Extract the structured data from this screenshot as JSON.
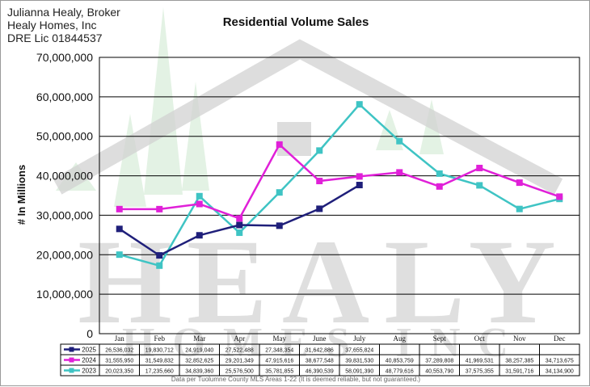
{
  "header": {
    "line1": "Julianna Healy, Broker",
    "line2": "Healy Homes, Inc",
    "line3": "DRE Lic 01844537"
  },
  "watermark": {
    "line1": "HEALY",
    "line2": "HOMES INC"
  },
  "footnote": "Data per Tuolumne County MLS Areas 1-22 (It is deemed reliable, but not guaranteed.)",
  "colors": {
    "s2025": "#1f1f7a",
    "s2024": "#e020d8",
    "s2023": "#3fc4c4",
    "grid": "#000000",
    "watermark_gray": "#d2d2d2",
    "watermark_green": "#d9eedb"
  },
  "chart_data": {
    "type": "line",
    "title": "Residential Volume Sales",
    "ylabel": "# In Millions",
    "xlabel": "",
    "ylim": [
      0,
      70000000
    ],
    "yticks": [
      "0",
      "10,000,000",
      "20,000,000",
      "30,000,000",
      "40,000,000",
      "50,000,000",
      "60,000,000",
      "70,000,000"
    ],
    "ytick_values": [
      0,
      10000000,
      20000000,
      30000000,
      40000000,
      50000000,
      60000000,
      70000000
    ],
    "grid": true,
    "legend": "data table below chart",
    "categories": [
      "Jan",
      "Feb",
      "Mar",
      "Apr",
      "May",
      "June",
      "July",
      "Aug",
      "Sept",
      "Oct",
      "Nov",
      "Dec"
    ],
    "series": [
      {
        "name": "2025",
        "values": [
          26536032,
          19830712,
          24919040,
          27522488,
          27348354,
          31642886,
          37655824,
          null,
          null,
          null,
          null,
          null
        ],
        "labels": [
          "26,536,032",
          "19,830,712",
          "24,919,040",
          "27,522,488",
          "27,348,354",
          "31,642,886",
          "37,655,824",
          "",
          "",
          "",
          "",
          ""
        ]
      },
      {
        "name": "2024",
        "values": [
          31555950,
          31549832,
          32852625,
          29201349,
          47915616,
          38677548,
          39831530,
          40853759,
          37289808,
          41969531,
          38257385,
          34713675
        ],
        "labels": [
          "31,555,950",
          "31,549,832",
          "32,852,625",
          "29,201,349",
          "47,915,616",
          "38,677,548",
          "39,831,530",
          "40,853,759",
          "37,289,808",
          "41,969,531",
          "38,257,385",
          "34,713,675"
        ]
      },
      {
        "name": "2023",
        "values": [
          20023350,
          17235660,
          34839360,
          25576500,
          35781855,
          46390539,
          58091390,
          48779616,
          40553790,
          37575355,
          31591716,
          34134900
        ],
        "labels": [
          "20,023,350",
          "17,235,660",
          "34,839,360",
          "25,576,500",
          "35,781,855",
          "46,390,539",
          "58,091,390",
          "48,779,616",
          "40,553,790",
          "37,575,355",
          "31,591,716",
          "34,134,900"
        ]
      }
    ]
  }
}
